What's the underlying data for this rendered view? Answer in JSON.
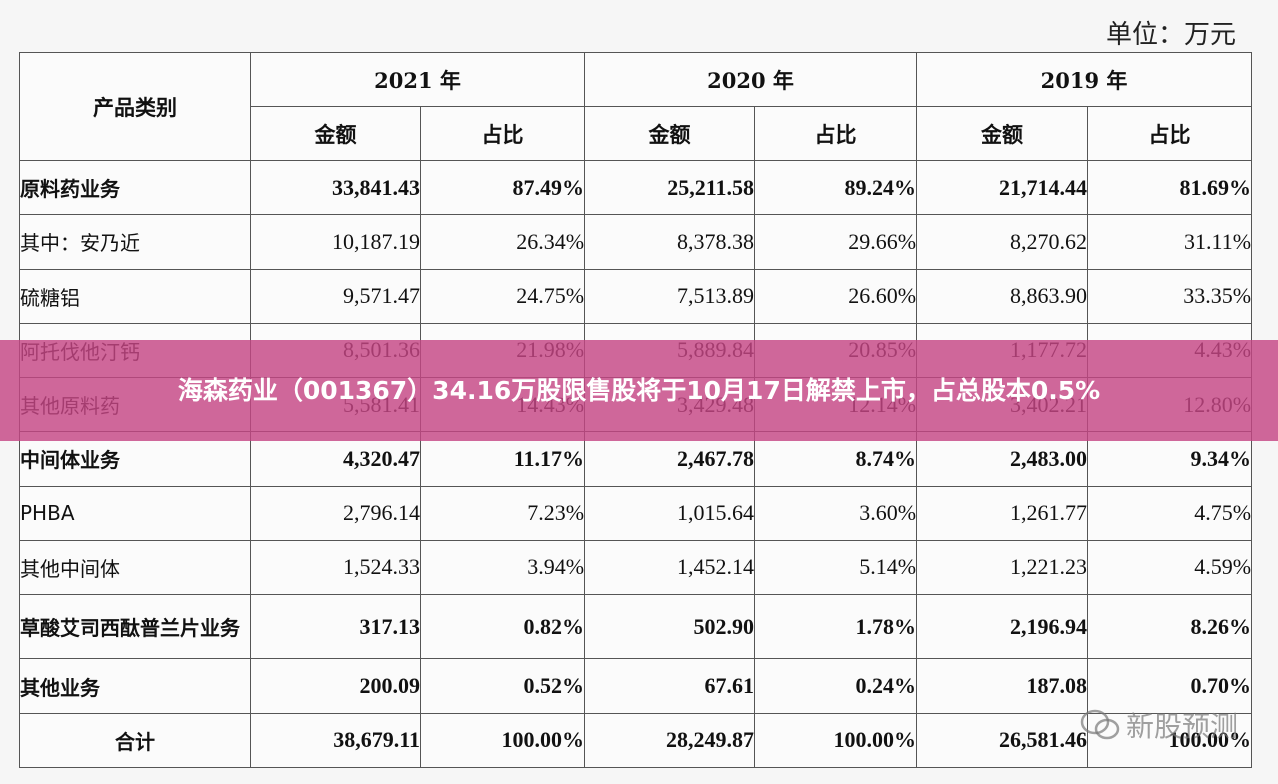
{
  "unit_label": "单位：万元",
  "header": {
    "category_label": "产品类别",
    "years": [
      "2021 年",
      "2020 年",
      "2019 年"
    ],
    "amount_label": "金额",
    "ratio_label": "占比"
  },
  "rows": [
    {
      "name": "原料药业务",
      "bold": true,
      "v": [
        "33,841.43",
        "87.49%",
        "25,211.58",
        "89.24%",
        "21,714.44",
        "81.69%"
      ]
    },
    {
      "name": "其中：安乃近",
      "bold": false,
      "v": [
        "10,187.19",
        "26.34%",
        "8,378.38",
        "29.66%",
        "8,270.62",
        "31.11%"
      ]
    },
    {
      "name": "硫糖铝",
      "bold": false,
      "v": [
        "9,571.47",
        "24.75%",
        "7,513.89",
        "26.60%",
        "8,863.90",
        "33.35%"
      ]
    },
    {
      "name": "阿托伐他汀钙",
      "bold": false,
      "v": [
        "8,501.36",
        "21.98%",
        "5,889.84",
        "20.85%",
        "1,177.72",
        "4.43%"
      ]
    },
    {
      "name": "其他原料药",
      "bold": false,
      "v": [
        "5,581.41",
        "14.43%",
        "3,429.48",
        "12.14%",
        "3,402.21",
        "12.80%"
      ]
    },
    {
      "name": "中间体业务",
      "bold": true,
      "v": [
        "4,320.47",
        "11.17%",
        "2,467.78",
        "8.74%",
        "2,483.00",
        "9.34%"
      ]
    },
    {
      "name": "PHBA",
      "bold": false,
      "v": [
        "2,796.14",
        "7.23%",
        "1,015.64",
        "3.60%",
        "1,261.77",
        "4.75%"
      ]
    },
    {
      "name": "其他中间体",
      "bold": false,
      "v": [
        "1,524.33",
        "3.94%",
        "1,452.14",
        "5.14%",
        "1,221.23",
        "4.59%"
      ]
    },
    {
      "name": "草酸艾司西酞普兰片业务",
      "bold": true,
      "v": [
        "317.13",
        "0.82%",
        "502.90",
        "1.78%",
        "2,196.94",
        "8.26%"
      ]
    },
    {
      "name": "其他业务",
      "bold": true,
      "v": [
        "200.09",
        "0.52%",
        "67.61",
        "0.24%",
        "187.08",
        "0.70%"
      ]
    },
    {
      "name": "合计",
      "bold": true,
      "total": true,
      "v": [
        "38,679.11",
        "100.00%",
        "28,249.87",
        "100.00%",
        "26,581.46",
        "100.00%"
      ]
    }
  ],
  "banner": {
    "text": "海森药业（001367）34.16万股限售股将于10月17日解禁上市，占总股本0.5%"
  },
  "watermark": {
    "icon": "wechat-icon",
    "text": "新股预测"
  }
}
